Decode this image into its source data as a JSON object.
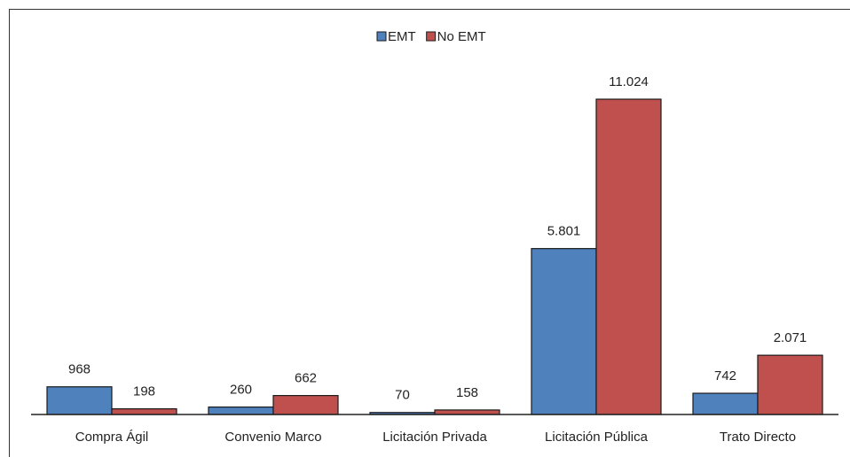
{
  "chart_data": {
    "type": "bar",
    "categories": [
      "Compra Ágil",
      "Convenio Marco",
      "Licitación Privada",
      "Licitación Pública",
      "Trato Directo"
    ],
    "series": [
      {
        "name": "EMT",
        "color": "#4f81bd",
        "values": [
          968,
          260,
          70,
          5801,
          742
        ],
        "value_labels": [
          "968",
          "260",
          "70",
          "5.801",
          "742"
        ]
      },
      {
        "name": "No EMT",
        "color": "#c0504d",
        "values": [
          198,
          662,
          158,
          11024,
          2071
        ],
        "value_labels": [
          "198",
          "662",
          "158",
          "11.024",
          "2.071"
        ]
      }
    ],
    "legend": "top"
  }
}
